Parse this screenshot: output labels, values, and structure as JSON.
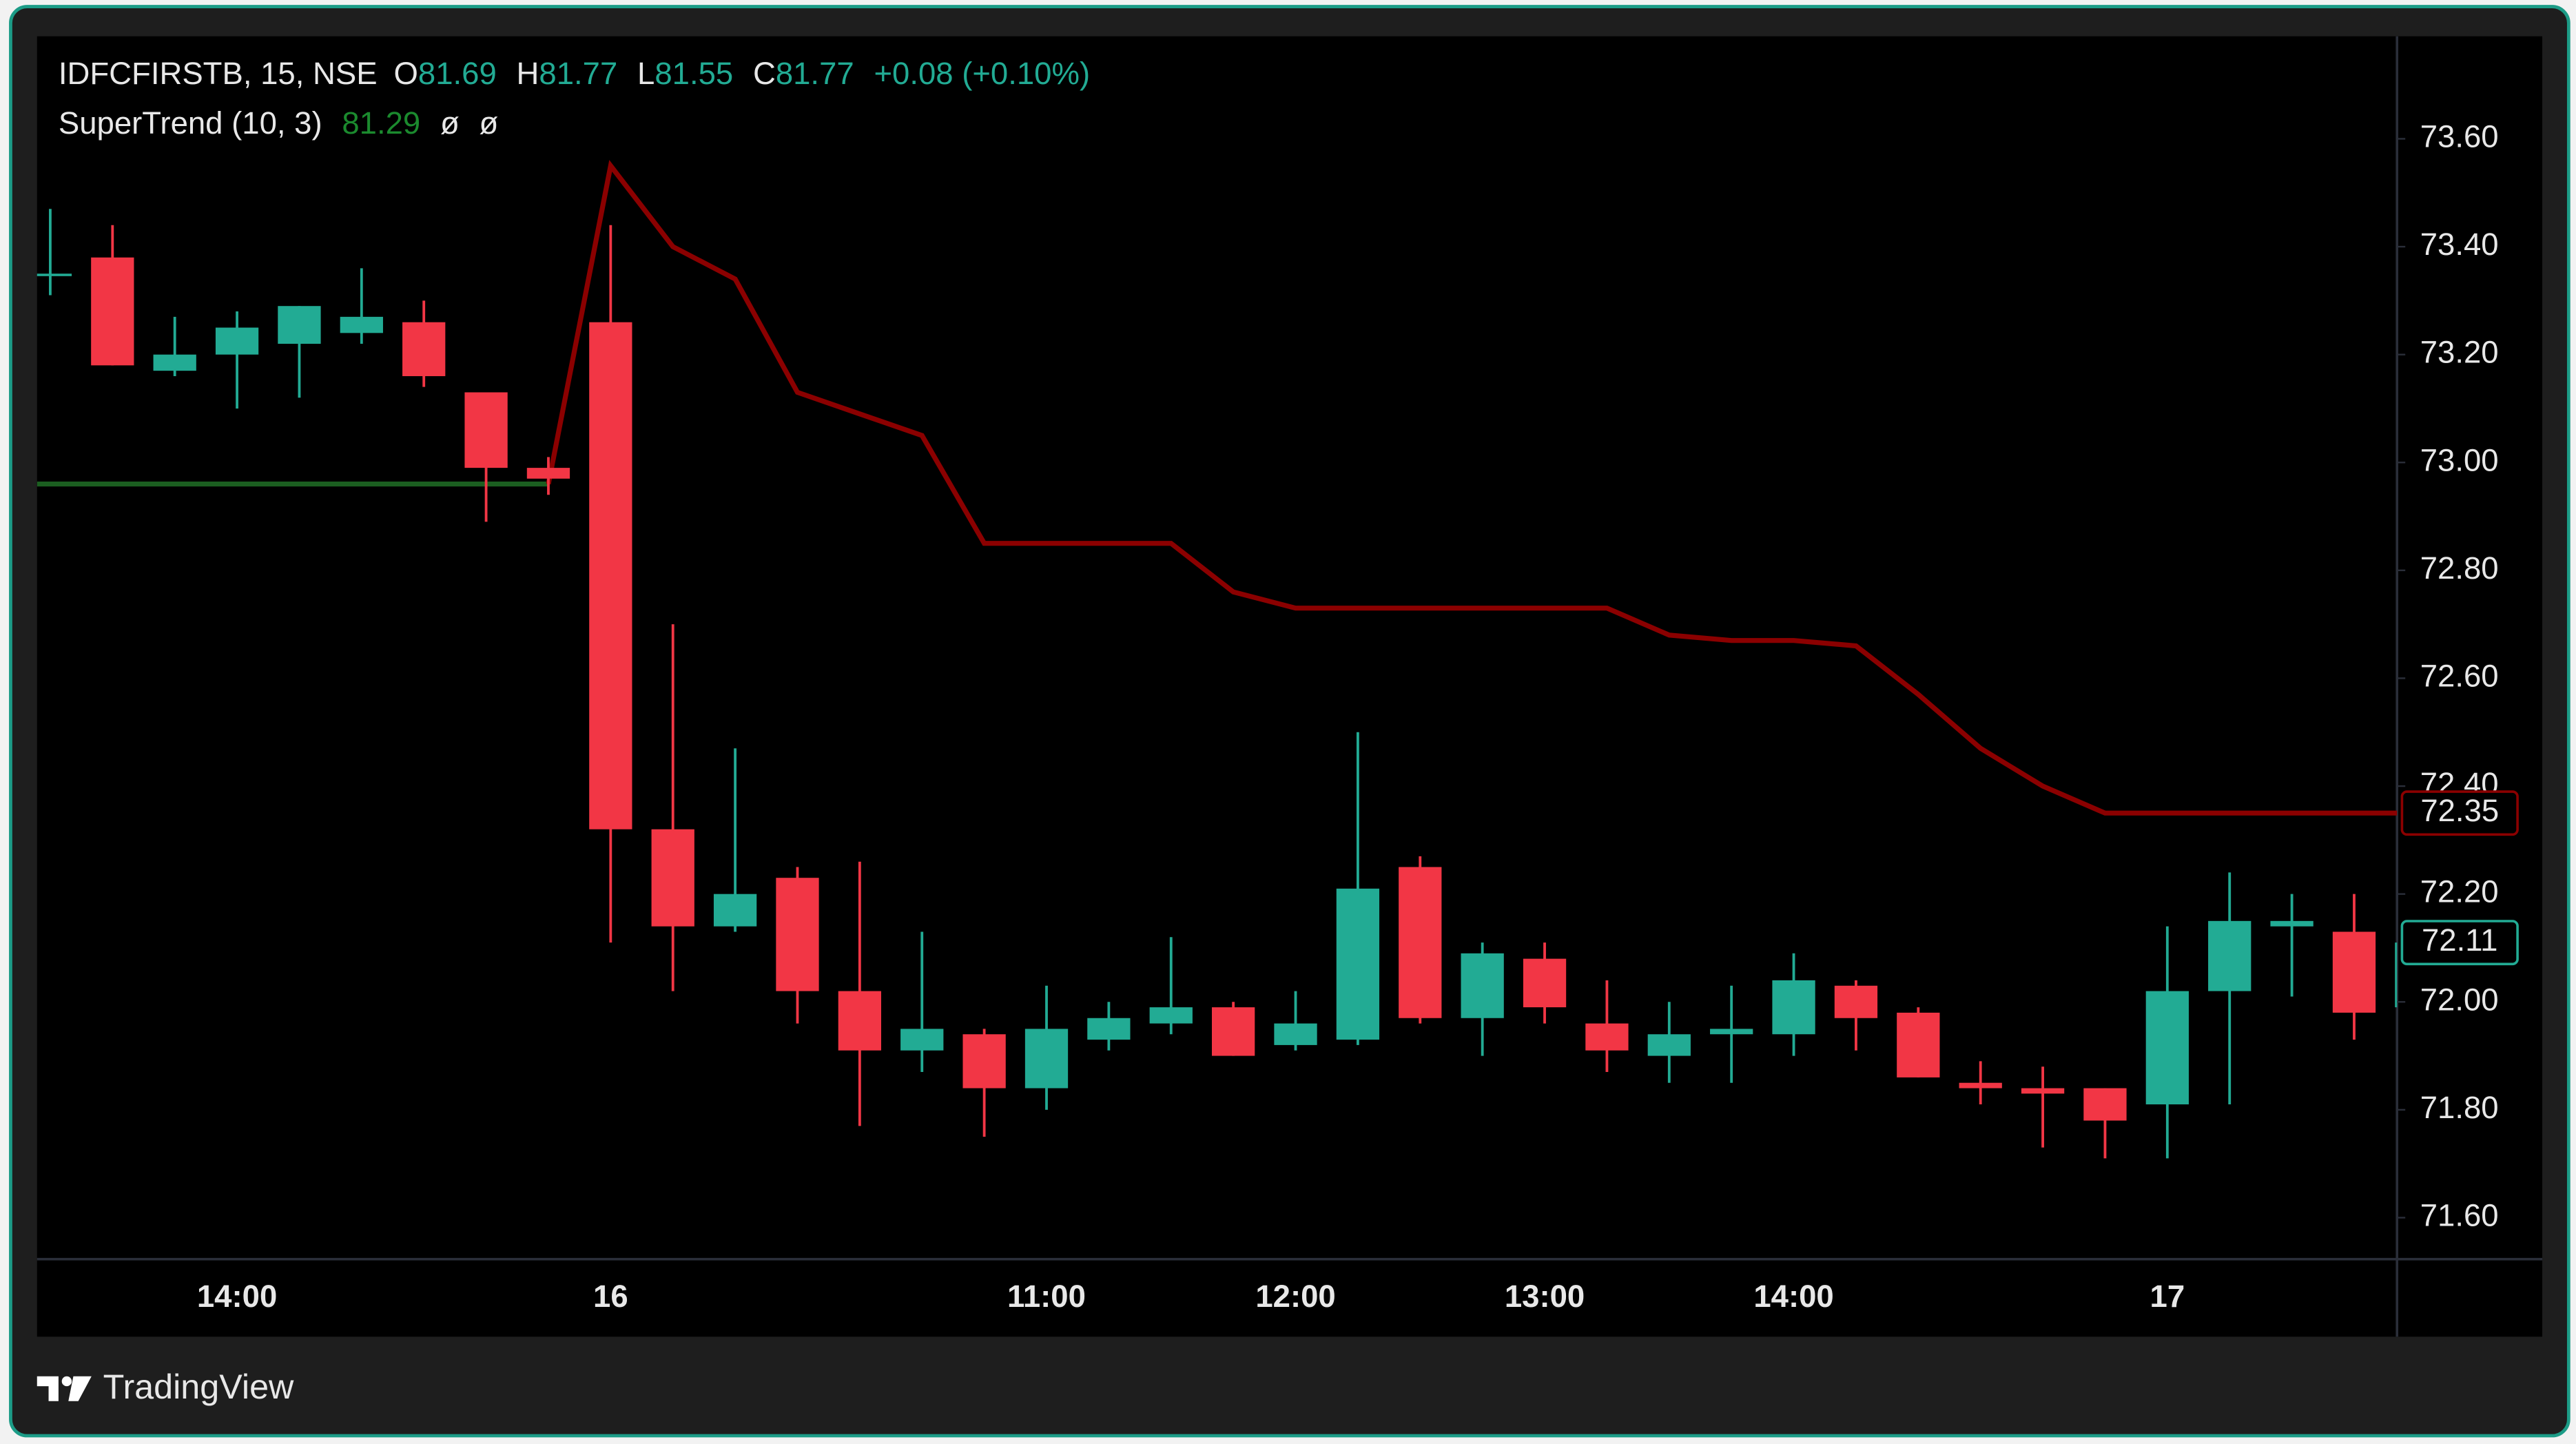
{
  "header": {
    "symbol": "IDFCFIRSTB, 15, NSE",
    "open_label": "O",
    "open": 81.69,
    "high_label": "H",
    "high": 81.77,
    "low_label": "L",
    "low": 81.55,
    "close_label": "C",
    "close": 81.77,
    "change": "+0.08 (+0.10%)"
  },
  "indicator": {
    "name": "SuperTrend (10, 3)",
    "value": 81.29,
    "extra": [
      "ø",
      "ø"
    ]
  },
  "brand": "TradingView",
  "chart_data": {
    "type": "candlestick",
    "categories": [
      null,
      null,
      null,
      "14:00",
      null,
      null,
      null,
      null,
      null,
      "16",
      null,
      null,
      null,
      null,
      null,
      null,
      "11:00",
      null,
      null,
      null,
      "12:00",
      null,
      null,
      null,
      "13:00",
      null,
      null,
      null,
      "14:00",
      null,
      null,
      null,
      null,
      null,
      "17",
      null,
      null,
      null,
      null
    ],
    "open": [
      73.35,
      73.38,
      73.17,
      73.2,
      73.22,
      73.24,
      73.26,
      73.13,
      72.99,
      73.26,
      72.32,
      72.14,
      72.23,
      72.02,
      71.91,
      71.94,
      71.84,
      71.93,
      71.96,
      71.99,
      71.92,
      71.93,
      72.25,
      71.97,
      72.08,
      71.96,
      71.9,
      71.94,
      71.94,
      72.03,
      71.98,
      71.85,
      71.84,
      71.84,
      71.81,
      72.02,
      72.14,
      72.13,
      71.99
    ],
    "high": [
      73.47,
      73.44,
      73.27,
      73.28,
      73.29,
      73.36,
      73.3,
      73.13,
      73.01,
      73.44,
      72.7,
      72.47,
      72.25,
      72.26,
      72.13,
      71.95,
      72.03,
      72.0,
      72.12,
      72.0,
      72.02,
      72.5,
      72.27,
      72.11,
      72.11,
      72.04,
      72.0,
      72.03,
      72.09,
      72.04,
      71.99,
      71.89,
      71.88,
      71.84,
      72.14,
      72.24,
      72.2,
      72.2,
      72.2
    ],
    "low": [
      73.31,
      73.18,
      73.16,
      73.1,
      73.12,
      73.22,
      73.14,
      72.89,
      72.94,
      72.11,
      72.02,
      72.13,
      71.96,
      71.77,
      71.87,
      71.75,
      71.8,
      71.91,
      71.94,
      71.9,
      71.91,
      71.92,
      71.96,
      71.9,
      71.96,
      71.87,
      71.85,
      71.85,
      71.9,
      71.91,
      71.86,
      71.81,
      71.73,
      71.71,
      71.71,
      71.81,
      72.01,
      71.93,
      71.98
    ],
    "close": [
      73.35,
      73.18,
      73.2,
      73.25,
      73.29,
      73.27,
      73.16,
      72.99,
      72.97,
      72.32,
      72.14,
      72.2,
      72.02,
      71.91,
      71.95,
      71.84,
      71.95,
      71.97,
      71.99,
      71.9,
      71.96,
      72.21,
      71.97,
      72.09,
      71.99,
      71.91,
      71.94,
      71.95,
      72.04,
      71.97,
      71.86,
      71.84,
      71.83,
      71.78,
      72.02,
      72.15,
      72.15,
      71.98,
      72.11
    ],
    "up_color": "#22ab94",
    "down_color": "#f23645",
    "series": [
      {
        "color": "#1b5e20",
        "values": [
          72.96,
          72.96,
          72.96,
          72.96,
          72.96,
          72.96,
          72.96,
          72.96,
          72.96,
          null,
          null,
          null,
          null,
          null,
          null,
          null,
          null,
          null,
          null,
          null,
          null,
          null,
          null,
          null,
          null,
          null,
          null,
          null,
          null,
          null,
          null,
          null,
          null,
          null,
          null,
          null,
          null,
          null,
          null
        ]
      },
      {
        "color": "#8b0000",
        "values": [
          null,
          null,
          null,
          null,
          null,
          null,
          null,
          null,
          72.96,
          73.55,
          73.4,
          73.34,
          73.13,
          73.09,
          73.05,
          72.85,
          72.85,
          72.85,
          72.85,
          72.76,
          72.73,
          72.73,
          72.73,
          72.73,
          72.73,
          72.73,
          72.68,
          72.67,
          72.67,
          72.66,
          72.57,
          72.47,
          72.4,
          72.35,
          72.35,
          72.35,
          72.35,
          72.35,
          72.35
        ]
      }
    ],
    "ylim": [
      71.52,
      73.79
    ],
    "yticks": [
      {
        "value": 73.6,
        "label": "73.60"
      },
      {
        "value": 73.4,
        "label": "73.40"
      },
      {
        "value": 73.2,
        "label": "73.20"
      },
      {
        "value": 73.0,
        "label": "73.00"
      },
      {
        "value": 72.8,
        "label": "72.80"
      },
      {
        "value": 72.6,
        "label": "72.60"
      },
      {
        "value": 72.4,
        "label": "72.40"
      },
      {
        "value": 72.2,
        "label": "72.20"
      },
      {
        "value": 72.0,
        "label": "72.00"
      },
      {
        "value": 71.8,
        "label": "71.80"
      },
      {
        "value": 71.6,
        "label": "71.60"
      }
    ],
    "grid": false
  }
}
